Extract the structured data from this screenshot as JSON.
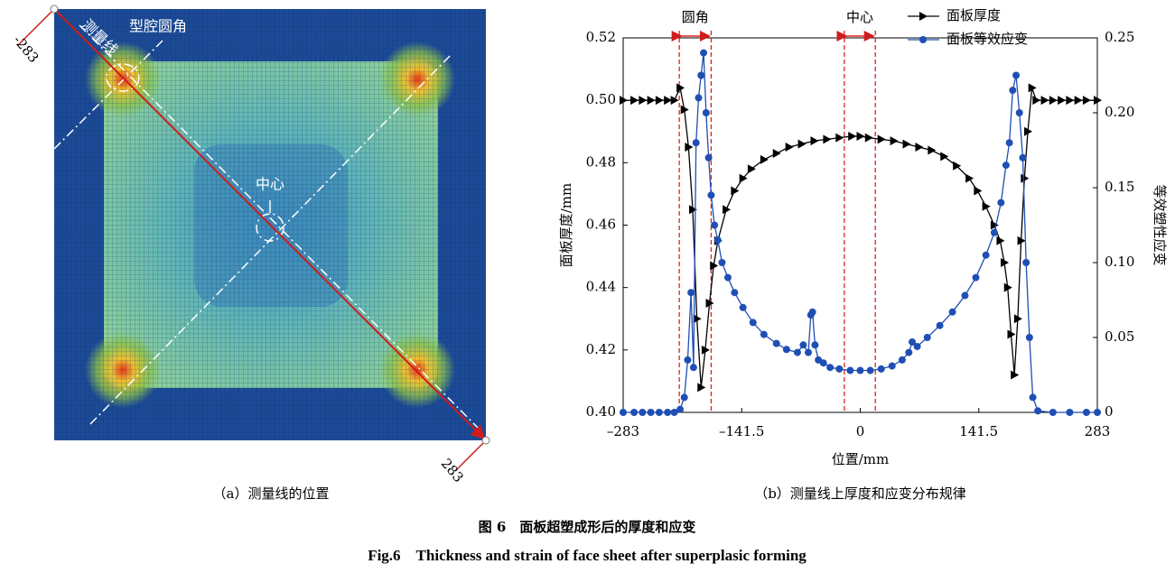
{
  "panel_a": {
    "labels": {
      "measure_line": "测量线",
      "cavity_fillet": "型腔圆角",
      "center": "中心",
      "start": "-283",
      "end": "283"
    },
    "caption": "（a）测量线的位置"
  },
  "chart_data": {
    "type": "line",
    "caption": "（b）测量线上厚度和应变分布规律",
    "x_label": "位置/mm",
    "y_label": "面板厚度/mm",
    "y2_label": "等效塑性应变",
    "annotations": [
      {
        "text": "圆角",
        "range": [
          -216,
          -178
        ]
      },
      {
        "text": "中心",
        "range": [
          -19,
          18
        ]
      }
    ],
    "xlim": [
      -283,
      283
    ],
    "xticks": [
      {
        "value": -283,
        "label": "–283"
      },
      {
        "value": -141.5,
        "label": "–141.5"
      },
      0,
      141.5,
      283
    ],
    "ylim": [
      0.4,
      0.52
    ],
    "yticks": [
      {
        "value": 0.4,
        "label": "0.40"
      },
      0.42,
      0.44,
      0.46,
      0.48,
      {
        "value": 0.5,
        "label": "0.50"
      },
      0.52
    ],
    "y2lim": [
      0,
      0.25
    ],
    "y2ticks": [
      0,
      0.05,
      {
        "value": 0.1,
        "label": "0.10"
      },
      0.15,
      {
        "value": 0.2,
        "label": "0.20"
      },
      0.25
    ],
    "series": [
      {
        "name": "面板厚度",
        "color": "#000000",
        "marker": "triangle",
        "x": [
          -283,
          -270,
          -260,
          -250,
          -240,
          -230,
          -222,
          -215,
          -210,
          -205,
          -200,
          -195,
          -190,
          -185,
          -180,
          -175,
          -170,
          -160,
          -150,
          -140,
          -130,
          -115,
          -100,
          -85,
          -70,
          -55,
          -40,
          -25,
          -10,
          0,
          10,
          25,
          40,
          55,
          70,
          85,
          100,
          115,
          130,
          140,
          150,
          160,
          167,
          172,
          176,
          180,
          184,
          188,
          192,
          196,
          200,
          205,
          210,
          220,
          230,
          240,
          250,
          260,
          270,
          283
        ],
        "values": [
          0.5,
          0.5,
          0.5,
          0.5,
          0.5,
          0.5,
          0.5,
          0.504,
          0.497,
          0.485,
          0.465,
          0.43,
          0.408,
          0.42,
          0.435,
          0.447,
          0.455,
          0.465,
          0.471,
          0.475,
          0.478,
          0.481,
          0.483,
          0.485,
          0.486,
          0.487,
          0.4875,
          0.488,
          0.4885,
          0.4885,
          0.488,
          0.4875,
          0.487,
          0.486,
          0.485,
          0.484,
          0.482,
          0.479,
          0.475,
          0.471,
          0.466,
          0.46,
          0.455,
          0.448,
          0.44,
          0.425,
          0.412,
          0.43,
          0.455,
          0.475,
          0.49,
          0.504,
          0.5,
          0.5,
          0.5,
          0.5,
          0.5,
          0.5,
          0.5,
          0.5
        ]
      },
      {
        "name": "面板等效应变",
        "color": "#1f4fb4",
        "marker": "circle",
        "axis": "y2",
        "x": [
          -283,
          -270,
          -260,
          -250,
          -240,
          -230,
          -222,
          -215,
          -210,
          -206,
          -202,
          -199,
          -196,
          -193,
          -190,
          -187,
          -184,
          -181,
          -178,
          -174,
          -170,
          -165,
          -158,
          -150,
          -140,
          -128,
          -115,
          -100,
          -88,
          -75,
          -68,
          -62,
          -59,
          -57,
          -54,
          -50,
          -44,
          -36,
          -25,
          -12,
          0,
          12,
          25,
          38,
          50,
          58,
          62,
          68,
          80,
          95,
          110,
          125,
          138,
          150,
          160,
          168,
          174,
          178,
          182,
          186,
          190,
          194,
          198,
          202,
          206,
          212,
          230,
          250,
          270,
          283
        ],
        "values": [
          0,
          0,
          0,
          0,
          0,
          0,
          0,
          0.002,
          0.01,
          0.035,
          0.08,
          0.03,
          0.18,
          0.21,
          0.225,
          0.24,
          0.2,
          0.17,
          0.145,
          0.125,
          0.115,
          0.1,
          0.09,
          0.08,
          0.07,
          0.06,
          0.052,
          0.046,
          0.042,
          0.04,
          0.045,
          0.04,
          0.065,
          0.067,
          0.045,
          0.035,
          0.033,
          0.03,
          0.029,
          0.028,
          0.028,
          0.028,
          0.029,
          0.031,
          0.035,
          0.04,
          0.047,
          0.044,
          0.05,
          0.058,
          0.067,
          0.078,
          0.09,
          0.105,
          0.12,
          0.14,
          0.165,
          0.18,
          0.215,
          0.225,
          0.2,
          0.17,
          0.1,
          0.05,
          0.01,
          0.001,
          0,
          0,
          0,
          0
        ]
      }
    ]
  },
  "figure": {
    "title_cn": "图 6　面板超塑成形后的厚度和应变",
    "title_en": "Fig.6　Thickness and strain of face sheet after superplasic forming"
  }
}
